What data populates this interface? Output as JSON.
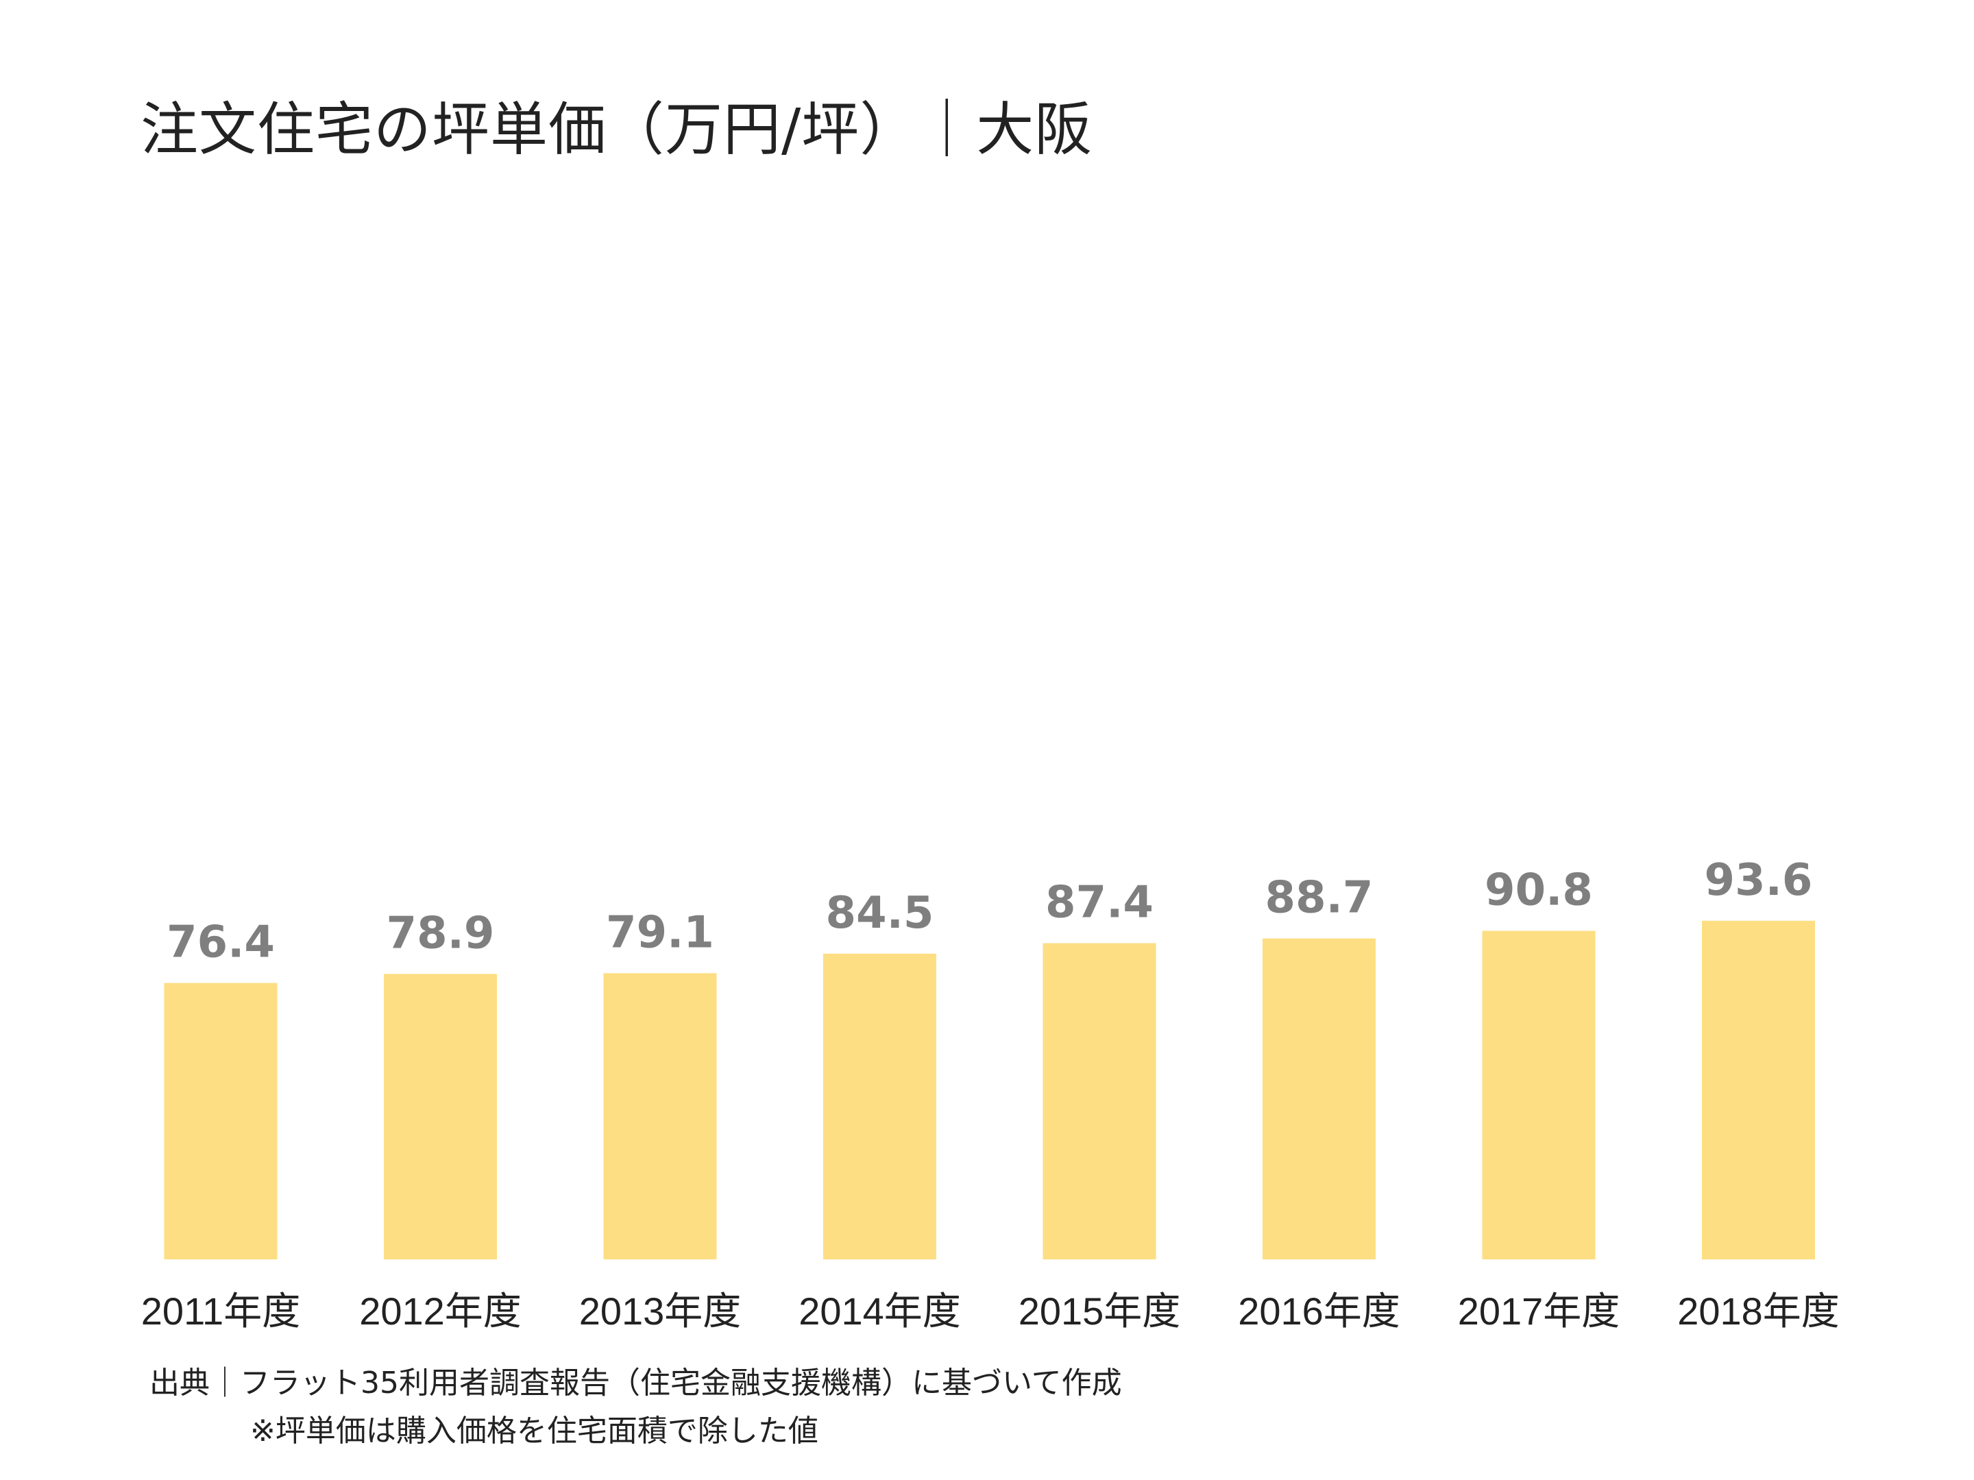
{
  "title": "注文住宅の坪単価（万円/坪）｜大阪",
  "source": "出典｜フラット35利用者調査報告（住宅金融支援機構）に基づいて作成",
  "note": "※坪単価は購入価格を住宅面積で除した値",
  "colors": {
    "bar": "#FDDE82",
    "value_label": "#7F7F7F",
    "axis_label": "#222222"
  },
  "chart_data": {
    "type": "bar",
    "title": "注文住宅の坪単価（万円/坪）｜大阪",
    "categories": [
      "2011年度",
      "2012年度",
      "2013年度",
      "2014年度",
      "2015年度",
      "2016年度",
      "2017年度",
      "2018年度"
    ],
    "values": [
      76.4,
      78.9,
      79.1,
      84.5,
      87.4,
      88.7,
      90.8,
      93.6
    ],
    "value_labels": [
      "76.4",
      "78.9",
      "79.1",
      "84.5",
      "87.4",
      "88.7",
      "90.8",
      "93.6"
    ],
    "xlabel": "",
    "ylabel": "",
    "ylim": [
      0,
      300
    ],
    "grid": false,
    "legend": "none"
  }
}
